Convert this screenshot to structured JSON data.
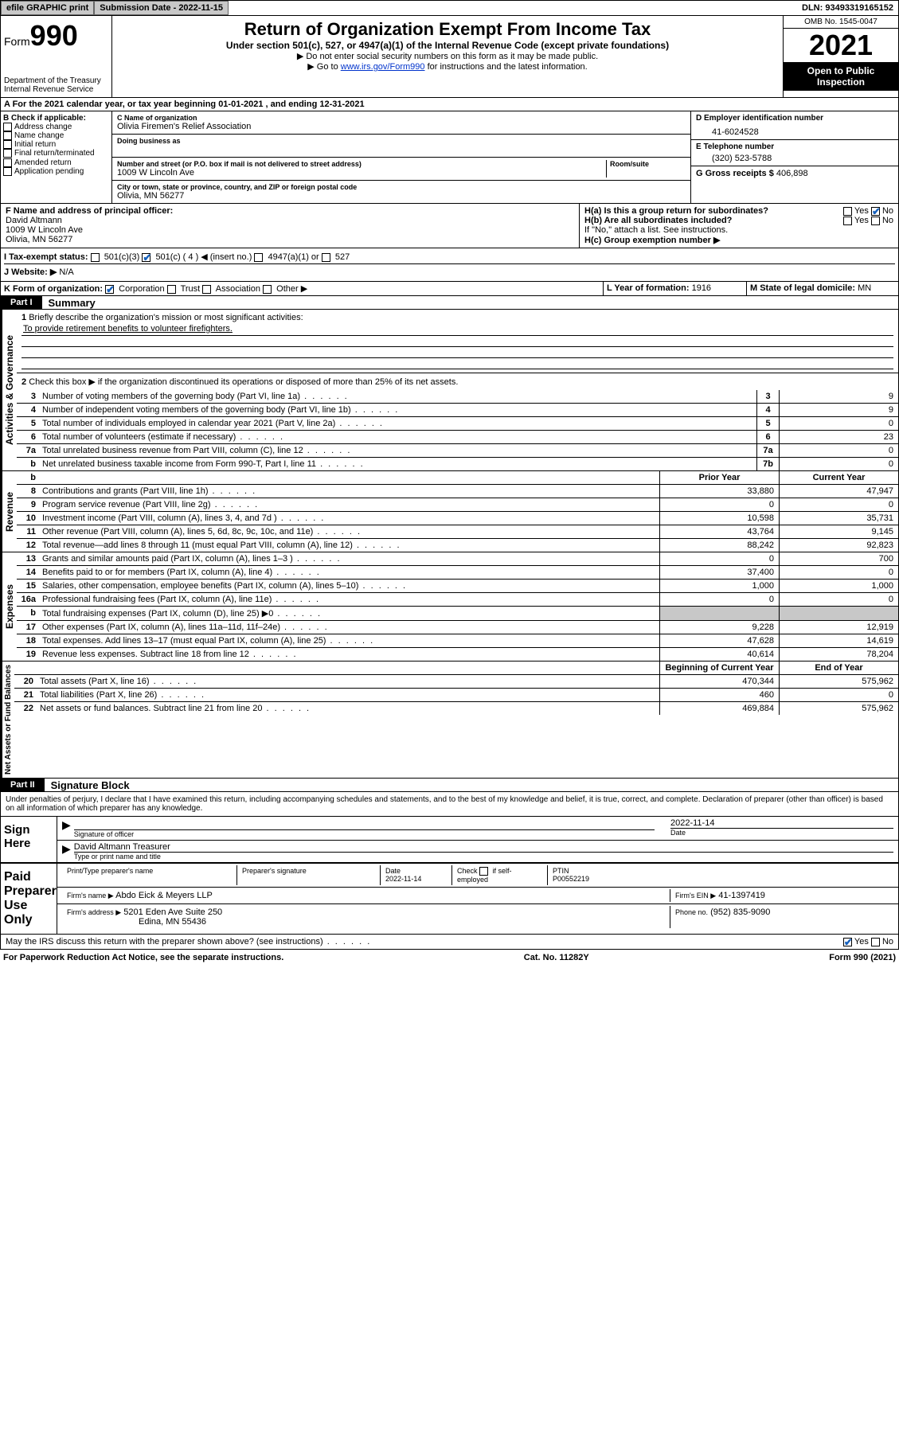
{
  "topbar": {
    "efile": "efile GRAPHIC print",
    "submission": "Submission Date - 2022-11-15",
    "dln": "DLN: 93493319165152"
  },
  "header": {
    "form_prefix": "Form",
    "form_num": "990",
    "dept": "Department of the Treasury",
    "irs": "Internal Revenue Service",
    "title": "Return of Organization Exempt From Income Tax",
    "subtitle": "Under section 501(c), 527, or 4947(a)(1) of the Internal Revenue Code (except private foundations)",
    "note1": "▶ Do not enter social security numbers on this form as it may be made public.",
    "note2_a": "▶ Go to ",
    "note2_link": "www.irs.gov/Form990",
    "note2_b": " for instructions and the latest information.",
    "omb": "OMB No. 1545-0047",
    "year": "2021",
    "open": "Open to Public Inspection"
  },
  "A": {
    "text": "A For the 2021 calendar year, or tax year beginning 01-01-2021   , and ending 12-31-2021"
  },
  "B": {
    "label": "B Check if applicable:",
    "items": [
      "Address change",
      "Name change",
      "Initial return",
      "Final return/terminated",
      "Amended return",
      "Application pending"
    ]
  },
  "C": {
    "name_label": "C Name of organization",
    "name": "Olivia Firemen's Relief Association",
    "dba_label": "Doing business as",
    "addr_label": "Number and street (or P.O. box if mail is not delivered to street address)",
    "room_label": "Room/suite",
    "addr": "1009 W Lincoln Ave",
    "city_label": "City or town, state or province, country, and ZIP or foreign postal code",
    "city": "Olivia, MN  56277"
  },
  "D": {
    "label": "D Employer identification number",
    "value": "41-6024528"
  },
  "E": {
    "label": "E Telephone number",
    "value": "(320) 523-5788"
  },
  "G": {
    "label": "G Gross receipts $",
    "value": "406,898"
  },
  "F": {
    "label": "F  Name and address of principal officer:",
    "name": "David Altmann",
    "addr1": "1009 W Lincoln Ave",
    "addr2": "Olivia, MN  56277"
  },
  "H": {
    "a": "H(a)  Is this a group return for subordinates?",
    "b": "H(b)  Are all subordinates included?",
    "note": "If \"No,\" attach a list. See instructions.",
    "c": "H(c)  Group exemption number ▶",
    "yes": "Yes",
    "no": "No"
  },
  "I": {
    "label": "I    Tax-exempt status:",
    "opts": [
      "501(c)(3)",
      "501(c) ( 4 ) ◀ (insert no.)",
      "4947(a)(1) or",
      "527"
    ]
  },
  "J": {
    "label": "J    Website: ▶",
    "value": "N/A"
  },
  "K": {
    "label": "K Form of organization:",
    "opts": [
      "Corporation",
      "Trust",
      "Association",
      "Other ▶"
    ]
  },
  "L": {
    "label": "L Year of formation:",
    "value": "1916"
  },
  "M": {
    "label": "M State of legal domicile:",
    "value": "MN"
  },
  "part1": {
    "label": "Part I",
    "name": "Summary",
    "q1": "Briefly describe the organization's mission or most significant activities:",
    "mission": "To provide retirement benefits to volunteer firefighters.",
    "q2": "Check this box ▶         if the organization discontinued its operations or disposed of more than 25% of its net assets.",
    "lines": [
      {
        "n": "3",
        "d": "Number of voting members of the governing body (Part VI, line 1a)",
        "box": "3",
        "val": "9"
      },
      {
        "n": "4",
        "d": "Number of independent voting members of the governing body (Part VI, line 1b)",
        "box": "4",
        "val": "9"
      },
      {
        "n": "5",
        "d": "Total number of individuals employed in calendar year 2021 (Part V, line 2a)",
        "box": "5",
        "val": "0"
      },
      {
        "n": "6",
        "d": "Total number of volunteers (estimate if necessary)",
        "box": "6",
        "val": "23"
      },
      {
        "n": "7a",
        "d": "Total unrelated business revenue from Part VIII, column (C), line 12",
        "box": "7a",
        "val": "0"
      },
      {
        "n": "b",
        "d": "Net unrelated business taxable income from Form 990-T, Part I, line 11",
        "box": "7b",
        "val": "0"
      }
    ],
    "col_prior": "Prior Year",
    "col_current": "Current Year",
    "rev": [
      {
        "n": "8",
        "d": "Contributions and grants (Part VIII, line 1h)",
        "p": "33,880",
        "c": "47,947"
      },
      {
        "n": "9",
        "d": "Program service revenue (Part VIII, line 2g)",
        "p": "0",
        "c": "0"
      },
      {
        "n": "10",
        "d": "Investment income (Part VIII, column (A), lines 3, 4, and 7d )",
        "p": "10,598",
        "c": "35,731"
      },
      {
        "n": "11",
        "d": "Other revenue (Part VIII, column (A), lines 5, 6d, 8c, 9c, 10c, and 11e)",
        "p": "43,764",
        "c": "9,145"
      },
      {
        "n": "12",
        "d": "Total revenue—add lines 8 through 11 (must equal Part VIII, column (A), line 12)",
        "p": "88,242",
        "c": "92,823"
      }
    ],
    "exp": [
      {
        "n": "13",
        "d": "Grants and similar amounts paid (Part IX, column (A), lines 1–3 )",
        "p": "0",
        "c": "700"
      },
      {
        "n": "14",
        "d": "Benefits paid to or for members (Part IX, column (A), line 4)",
        "p": "37,400",
        "c": "0"
      },
      {
        "n": "15",
        "d": "Salaries, other compensation, employee benefits (Part IX, column (A), lines 5–10)",
        "p": "1,000",
        "c": "1,000"
      },
      {
        "n": "16a",
        "d": "Professional fundraising fees (Part IX, column (A), line 11e)",
        "p": "0",
        "c": "0"
      },
      {
        "n": "b",
        "d": "Total fundraising expenses (Part IX, column (D), line 25) ▶0",
        "p": "",
        "c": "",
        "gray": true
      },
      {
        "n": "17",
        "d": "Other expenses (Part IX, column (A), lines 11a–11d, 11f–24e)",
        "p": "9,228",
        "c": "12,919"
      },
      {
        "n": "18",
        "d": "Total expenses. Add lines 13–17 (must equal Part IX, column (A), line 25)",
        "p": "47,628",
        "c": "14,619"
      },
      {
        "n": "19",
        "d": "Revenue less expenses. Subtract line 18 from line 12",
        "p": "40,614",
        "c": "78,204"
      }
    ],
    "col_begin": "Beginning of Current Year",
    "col_end": "End of Year",
    "net": [
      {
        "n": "20",
        "d": "Total assets (Part X, line 16)",
        "p": "470,344",
        "c": "575,962"
      },
      {
        "n": "21",
        "d": "Total liabilities (Part X, line 26)",
        "p": "460",
        "c": "0"
      },
      {
        "n": "22",
        "d": "Net assets or fund balances. Subtract line 21 from line 20",
        "p": "469,884",
        "c": "575,962"
      }
    ]
  },
  "vlabels": {
    "act": "Activities & Governance",
    "rev": "Revenue",
    "exp": "Expenses",
    "net": "Net Assets or Fund Balances"
  },
  "part2": {
    "label": "Part II",
    "name": "Signature Block",
    "declaration": "Under penalties of perjury, I declare that I have examined this return, including accompanying schedules and statements, and to the best of my knowledge and belief, it is true, correct, and complete. Declaration of preparer (other than officer) is based on all information of which preparer has any knowledge.",
    "sign_here": "Sign Here",
    "sig_officer": "Signature of officer",
    "sig_date": "2022-11-14",
    "date_label": "Date",
    "officer_name": "David Altmann Treasurer",
    "type_name": "Type or print name and title",
    "paid": "Paid Preparer Use Only",
    "prep_name_label": "Print/Type preparer's name",
    "prep_sig_label": "Preparer's signature",
    "prep_date_label": "Date",
    "prep_date": "2022-11-14",
    "check_self": "Check         if self-employed",
    "ptin_label": "PTIN",
    "ptin": "P00552219",
    "firm_name_label": "Firm's name    ▶",
    "firm_name": "Abdo Eick & Meyers LLP",
    "firm_ein_label": "Firm's EIN ▶",
    "firm_ein": "41-1397419",
    "firm_addr_label": "Firm's address ▶",
    "firm_addr1": "5201 Eden Ave Suite 250",
    "firm_addr2": "Edina, MN  55436",
    "phone_label": "Phone no.",
    "phone": "(952) 835-9090",
    "discuss": "May the IRS discuss this return with the preparer shown above? (see instructions)"
  },
  "footer": {
    "paperwork": "For Paperwork Reduction Act Notice, see the separate instructions.",
    "cat": "Cat. No. 11282Y",
    "form": "Form 990 (2021)"
  }
}
